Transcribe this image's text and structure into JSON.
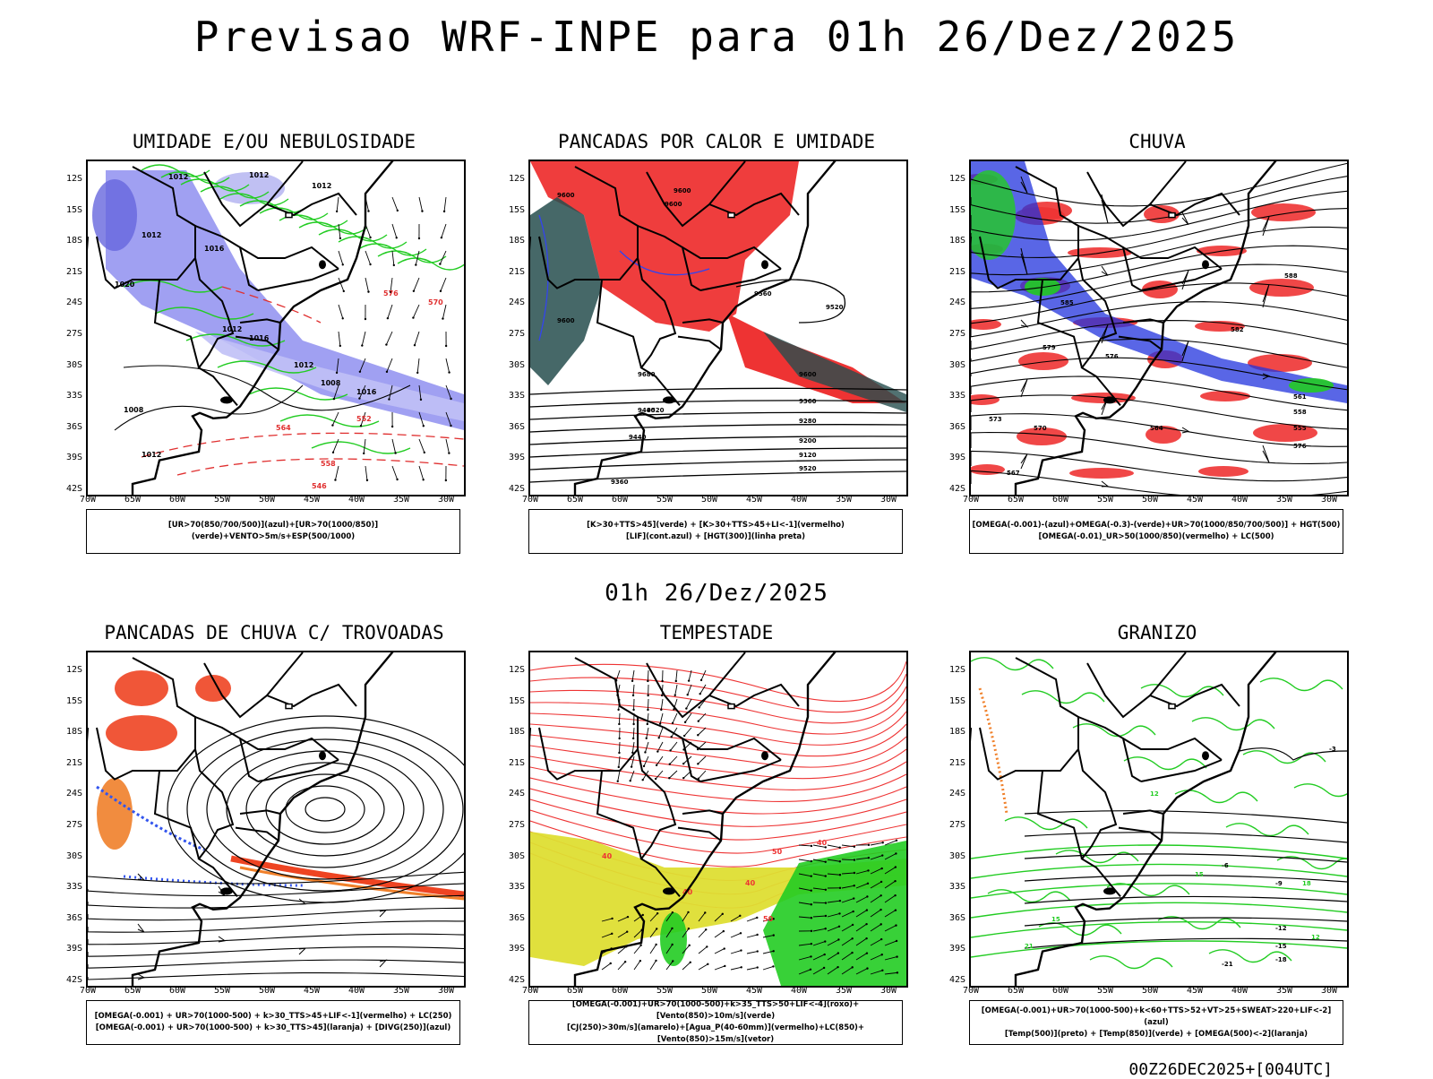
{
  "title": "Previsao WRF-INPE  para 01h 26/Dez/2025",
  "mid_date": "01h 26/Dez/2025",
  "footer": "00Z26DEC2025+[004UTC]",
  "lat_labels": [
    "12S",
    "15S",
    "18S",
    "21S",
    "24S",
    "27S",
    "30S",
    "33S",
    "36S",
    "39S",
    "42S"
  ],
  "lon_labels": [
    "70W",
    "65W",
    "60W",
    "55W",
    "50W",
    "45W",
    "40W",
    "35W",
    "30W"
  ],
  "panels": [
    {
      "title": "UMIDADE E/OU NEBULOSIDADE",
      "legend": [
        "[UR>70(850/700/500)](azul)+[UR>70(1000/850)](verde)+VENTO>5m/s+ESP(500/1000)"
      ]
    },
    {
      "title": "PANCADAS POR CALOR E UMIDADE",
      "legend": [
        "[K>30+TTS>45](verde) + [K>30+TTS>45+LI<-1](vermelho)",
        "[LIF](cont.azul) + [HGT(300)](linha preta)"
      ]
    },
    {
      "title": "CHUVA",
      "legend": [
        "[OMEGA(-0.001)-(azul)+OMEGA(-0.3)-(verde)+UR>70(1000/850/700/500)] + HGT(500)",
        "[OMEGA(-0.01)_UR>50(1000/850)(vermelho) + LC(500)"
      ]
    },
    {
      "title": "PANCADAS DE CHUVA C/ TROVOADAS",
      "legend": [
        "[OMEGA(-0.001) + UR>70(1000-500) + k>30_TTS>45+LIF<-1](vermelho) + LC(250)",
        "[OMEGA(-0.001) + UR>70(1000-500) + k>30_TTS>45](laranja) + [DIVG(250)](azul)"
      ]
    },
    {
      "title": "TEMPESTADE",
      "legend": [
        "[OMEGA(-0.001)+UR>70(1000-500)+k>35_TTS>50+LIF<-4](roxo)+[Vento(850)>10m/s](verde)",
        "[CJ(250)>30m/s](amarelo)+[Agua_P(40-60mm)](vermelho)+LC(850)+[Vento(850)>15m/s](vetor)"
      ]
    },
    {
      "title": "GRANIZO",
      "legend": [
        "[OMEGA(-0.001)+UR>70(1000-500)+k<60+TTS>52+VT>25+SWEAT>220+LIF<-2](azul)",
        "[Temp(500)](preto) + [Temp(850)](verde) + [OMEGA(500)<-2](laranja)"
      ]
    }
  ],
  "map_labels": {
    "p1": [
      "1012",
      "1012",
      "1012",
      "1012",
      "1016",
      "1020",
      "1012",
      "1016",
      "1012",
      "1008",
      "1008",
      "1012",
      "1016",
      "576",
      "570",
      "564",
      "558",
      "552",
      "546"
    ],
    "p2": [
      "9600",
      "9600",
      "9600",
      "9560",
      "9520",
      "9600",
      "9680",
      "9600",
      "9520",
      "9440",
      "9360",
      "9280",
      "9200",
      "9120",
      "9520",
      "9440",
      "9360"
    ],
    "p3": [
      "588",
      "585",
      "582",
      "579",
      "576",
      "573",
      "570",
      "567",
      "564",
      "561",
      "558",
      "555",
      "576"
    ],
    "p5": [
      "40",
      "40",
      "50",
      "40",
      "50",
      "40"
    ],
    "p6": [
      "-3",
      "-6",
      "-9",
      "-12",
      "-15",
      "-18",
      "-21",
      "12",
      "15",
      "18",
      "21",
      "15",
      "12"
    ]
  }
}
